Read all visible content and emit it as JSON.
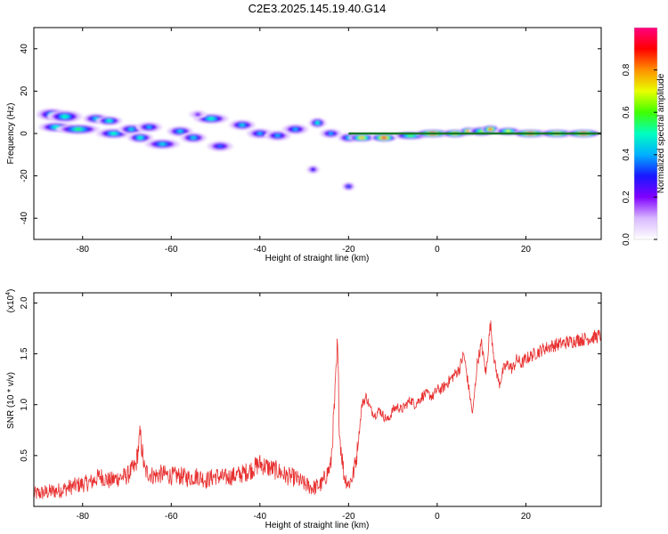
{
  "title": "C2E3.2025.145.19.40.G14",
  "chart_data": [
    {
      "type": "heatmap",
      "xlabel": "Height of straight line (km)",
      "ylabel": "Frequency (Hz)",
      "xlim": [
        -91,
        37
      ],
      "ylim": [
        -50,
        50
      ],
      "xticks": [
        -80,
        -60,
        -40,
        -20,
        0,
        20
      ],
      "yticks": [
        -40,
        -20,
        0,
        20,
        40
      ],
      "colorbar": {
        "label": "Normalized spectral amplitude",
        "range": [
          0,
          1
        ],
        "ticks": [
          "0.0",
          "0.2",
          "0.4",
          "0.6",
          "0.8"
        ],
        "colors": [
          "#ffffff",
          "#d8b8ff",
          "#8000ff",
          "#1818ff",
          "#00b0ff",
          "#00ffc0",
          "#40ff00",
          "#e8ff00",
          "#ff9000",
          "#ff0000",
          "#ff0080"
        ]
      },
      "blobs": [
        {
          "x": -87,
          "y": 9,
          "w": 3.5,
          "h": 2.5,
          "a": 0.45
        },
        {
          "x": -84,
          "y": 8,
          "w": 4,
          "h": 2.5,
          "a": 0.5
        },
        {
          "x": -86,
          "y": 3,
          "w": 4,
          "h": 2,
          "a": 0.5
        },
        {
          "x": -81,
          "y": 2,
          "w": 5,
          "h": 2,
          "a": 0.55
        },
        {
          "x": -77,
          "y": 7,
          "w": 3,
          "h": 2,
          "a": 0.45
        },
        {
          "x": -74,
          "y": 6,
          "w": 3,
          "h": 1.8,
          "a": 0.5
        },
        {
          "x": -73,
          "y": 0,
          "w": 4,
          "h": 2,
          "a": 0.5
        },
        {
          "x": -69,
          "y": 2,
          "w": 3,
          "h": 2,
          "a": 0.45
        },
        {
          "x": -67,
          "y": -2,
          "w": 3,
          "h": 2,
          "a": 0.5
        },
        {
          "x": -65,
          "y": 3,
          "w": 3,
          "h": 2,
          "a": 0.4
        },
        {
          "x": -62,
          "y": -5,
          "w": 4,
          "h": 2,
          "a": 0.45
        },
        {
          "x": -58,
          "y": 1,
          "w": 3,
          "h": 2,
          "a": 0.45
        },
        {
          "x": -55,
          "y": -2,
          "w": 3,
          "h": 2,
          "a": 0.45
        },
        {
          "x": -51,
          "y": 7,
          "w": 4,
          "h": 2,
          "a": 0.5
        },
        {
          "x": -49,
          "y": -6,
          "w": 3,
          "h": 2,
          "a": 0.35
        },
        {
          "x": -44,
          "y": 4,
          "w": 3,
          "h": 2,
          "a": 0.45
        },
        {
          "x": -40,
          "y": 0,
          "w": 3,
          "h": 2,
          "a": 0.4
        },
        {
          "x": -36,
          "y": -1,
          "w": 3,
          "h": 2,
          "a": 0.4
        },
        {
          "x": -32,
          "y": 2,
          "w": 3,
          "h": 2,
          "a": 0.4
        },
        {
          "x": -27,
          "y": 5,
          "w": 2,
          "h": 2,
          "a": 0.5
        },
        {
          "x": -24,
          "y": 0,
          "w": 2.5,
          "h": 1.8,
          "a": 0.4
        },
        {
          "x": -20,
          "y": -2,
          "w": 2.5,
          "h": 1.8,
          "a": 0.45
        },
        {
          "x": -17,
          "y": -2,
          "w": 3,
          "h": 1.5,
          "a": 0.8
        },
        {
          "x": -12,
          "y": -2,
          "w": 3,
          "h": 1.5,
          "a": 0.95
        },
        {
          "x": -6,
          "y": -1,
          "w": 4,
          "h": 1.5,
          "a": 0.6
        },
        {
          "x": -1,
          "y": 0,
          "w": 4,
          "h": 1.5,
          "a": 0.95
        },
        {
          "x": 4,
          "y": 0,
          "w": 3,
          "h": 1.5,
          "a": 0.8
        },
        {
          "x": 7,
          "y": 1,
          "w": 2,
          "h": 1.5,
          "a": 0.9
        },
        {
          "x": 10,
          "y": 1,
          "w": 3,
          "h": 1.8,
          "a": 0.65
        },
        {
          "x": 12,
          "y": 2,
          "w": 2,
          "h": 1.5,
          "a": 0.9
        },
        {
          "x": 16,
          "y": 1,
          "w": 3,
          "h": 1.5,
          "a": 0.7
        },
        {
          "x": 21,
          "y": 0,
          "w": 4,
          "h": 1.5,
          "a": 0.95
        },
        {
          "x": 27,
          "y": 0,
          "w": 4,
          "h": 1.5,
          "a": 0.8
        },
        {
          "x": 33,
          "y": 0,
          "w": 4,
          "h": 1.5,
          "a": 0.95
        },
        {
          "x": -28,
          "y": -17,
          "w": 1.5,
          "h": 1.5,
          "a": 0.3
        },
        {
          "x": -20,
          "y": -25,
          "w": 1.5,
          "h": 1.5,
          "a": 0.35
        },
        {
          "x": -54,
          "y": 9,
          "w": 2,
          "h": 1.5,
          "a": 0.2
        }
      ]
    },
    {
      "type": "line",
      "xlabel": "Height of straight line (km)",
      "ylabel": "SNR (10 * v/v)",
      "y_multiplier": "(x10^4)",
      "xlim": [
        -91,
        37
      ],
      "ylim": [
        0,
        2.1
      ],
      "xticks": [
        -80,
        -60,
        -40,
        -20,
        0,
        20
      ],
      "yticks": [
        0.5,
        1.0,
        1.5,
        2.0
      ],
      "ytick_labels": [
        "0.5",
        "1.0",
        "1.5",
        "2.0"
      ],
      "color": "#e83030",
      "series": [
        {
          "x": [
            -91,
            -88,
            -85,
            -82,
            -80,
            -78,
            -76,
            -74,
            -72,
            -70,
            -68,
            -67,
            -66,
            -64,
            -62,
            -60,
            -58,
            -56,
            -54,
            -52,
            -50,
            -48,
            -46,
            -44,
            -42,
            -40,
            -38,
            -36,
            -34,
            -32,
            -30,
            -28,
            -26,
            -24,
            -23,
            -22.5,
            -22,
            -21,
            -20,
            -19,
            -18,
            -17,
            -16,
            -15,
            -14,
            -13,
            -12,
            -11,
            -10,
            -9,
            -8,
            -7,
            -6,
            -5,
            -4,
            -3,
            -2,
            -1,
            0,
            1,
            2,
            3,
            4,
            5,
            6,
            7,
            8,
            9,
            10,
            11,
            12,
            13,
            14,
            15,
            16,
            17,
            18,
            19,
            20,
            22,
            24,
            26,
            28,
            30,
            32,
            34,
            36,
            37
          ],
          "y": [
            0.12,
            0.14,
            0.16,
            0.2,
            0.22,
            0.24,
            0.3,
            0.25,
            0.28,
            0.3,
            0.4,
            0.7,
            0.35,
            0.3,
            0.32,
            0.3,
            0.3,
            0.28,
            0.3,
            0.26,
            0.3,
            0.28,
            0.3,
            0.32,
            0.36,
            0.42,
            0.38,
            0.35,
            0.3,
            0.28,
            0.22,
            0.18,
            0.22,
            0.4,
            1.1,
            1.55,
            0.7,
            0.3,
            0.22,
            0.3,
            0.55,
            1.0,
            1.08,
            0.95,
            0.9,
            0.95,
            0.88,
            0.85,
            0.95,
            0.98,
            0.95,
            1.0,
            1.05,
            1.0,
            1.05,
            1.1,
            1.1,
            1.08,
            1.15,
            1.15,
            1.2,
            1.25,
            1.3,
            1.35,
            1.5,
            1.2,
            0.9,
            1.4,
            1.6,
            1.3,
            1.8,
            1.4,
            1.2,
            1.35,
            1.4,
            1.35,
            1.45,
            1.4,
            1.45,
            1.5,
            1.55,
            1.58,
            1.6,
            1.62,
            1.64,
            1.65,
            1.67,
            1.68
          ]
        }
      ]
    }
  ]
}
